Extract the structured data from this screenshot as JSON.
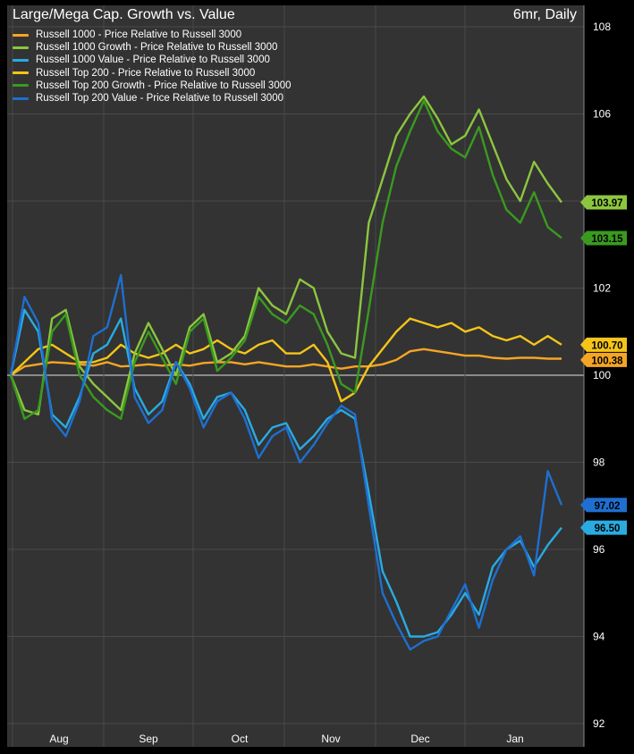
{
  "chart_data": {
    "type": "line",
    "title": "Large/Mega Cap. Growth vs. Value",
    "subtitle": "6mr, Daily",
    "ylim": [
      92,
      108
    ],
    "y_ticks": [
      92,
      94,
      96,
      98,
      100,
      102,
      104,
      106,
      108
    ],
    "x_ticks": [
      "Aug",
      "Sep",
      "Oct",
      "Nov",
      "Dec",
      "Jan"
    ],
    "grid": true,
    "legend_position": "top-left",
    "reference_line": 100,
    "series": [
      {
        "name": "Russell 1000 - Price Relative to Russell 3000",
        "color": "#f5a524",
        "last_label": "100.38",
        "values": [
          100.0,
          100.2,
          100.25,
          100.3,
          100.28,
          100.25,
          100.22,
          100.3,
          100.2,
          100.22,
          100.25,
          100.22,
          100.25,
          100.22,
          100.28,
          100.3,
          100.3,
          100.25,
          100.3,
          100.25,
          100.2,
          100.2,
          100.25,
          100.2,
          100.15,
          100.2,
          100.2,
          100.25,
          100.35,
          100.55,
          100.6,
          100.55,
          100.5,
          100.45,
          100.45,
          100.4,
          100.38,
          100.4,
          100.4,
          100.38,
          100.38
        ]
      },
      {
        "name": "Russell 1000 Growth - Price Relative to Russell 3000",
        "color": "#8cc63f",
        "last_label": "103.97",
        "values": [
          100.0,
          99.2,
          99.1,
          101.3,
          101.5,
          100.2,
          99.8,
          99.5,
          99.2,
          100.5,
          101.2,
          100.6,
          100.0,
          101.1,
          101.4,
          100.3,
          100.5,
          100.9,
          102.0,
          101.6,
          101.4,
          102.2,
          102.0,
          101.0,
          100.5,
          100.4,
          103.5,
          104.5,
          105.5,
          106.0,
          106.4,
          105.9,
          105.3,
          105.5,
          106.1,
          105.3,
          104.5,
          104.0,
          104.9,
          104.4,
          103.97
        ]
      },
      {
        "name": "Russell 1000 Value - Price Relative to Russell 3000",
        "color": "#29abe2",
        "last_label": "96.50",
        "values": [
          100.0,
          101.5,
          101.0,
          99.1,
          98.8,
          99.5,
          100.5,
          100.7,
          101.3,
          99.7,
          99.1,
          99.4,
          100.3,
          99.8,
          99.0,
          99.5,
          99.6,
          99.2,
          98.4,
          98.8,
          98.9,
          98.3,
          98.6,
          99.0,
          99.2,
          99.0,
          97.3,
          95.5,
          94.8,
          94.0,
          94.0,
          94.1,
          94.5,
          95.0,
          94.5,
          95.6,
          96.0,
          96.2,
          95.6,
          96.1,
          96.5
        ]
      },
      {
        "name": "Russell Top 200 - Price Relative to Russell 3000",
        "color": "#f5c518",
        "last_label": "100.70",
        "values": [
          100.0,
          100.3,
          100.6,
          100.7,
          100.5,
          100.3,
          100.3,
          100.4,
          100.7,
          100.5,
          100.4,
          100.5,
          100.7,
          100.5,
          100.6,
          100.8,
          100.6,
          100.5,
          100.7,
          100.8,
          100.5,
          100.5,
          100.7,
          100.3,
          99.4,
          99.6,
          100.2,
          100.6,
          101.0,
          101.3,
          101.2,
          101.1,
          101.2,
          101.0,
          101.1,
          100.9,
          100.8,
          100.9,
          100.7,
          100.9,
          100.7
        ]
      },
      {
        "name": "Russell Top 200 Growth - Price Relative to Russell 3000",
        "color": "#3a9a1f",
        "last_label": "103.15",
        "values": [
          100.0,
          99.0,
          99.2,
          101.0,
          101.4,
          100.0,
          99.5,
          99.2,
          99.0,
          100.3,
          101.0,
          100.4,
          99.8,
          101.0,
          101.3,
          100.1,
          100.4,
          100.8,
          101.8,
          101.4,
          101.2,
          101.6,
          101.4,
          100.7,
          99.8,
          99.6,
          101.5,
          103.5,
          104.8,
          105.6,
          106.3,
          105.6,
          105.2,
          105.0,
          105.7,
          104.6,
          103.8,
          103.5,
          104.2,
          103.4,
          103.15
        ]
      },
      {
        "name": "Russell Top 200 Value - Price Relative to Russell 3000",
        "color": "#1e6fd0",
        "last_label": "97.02",
        "values": [
          100.0,
          101.8,
          101.2,
          99.0,
          98.6,
          99.4,
          100.9,
          101.1,
          102.3,
          99.5,
          98.9,
          99.2,
          100.3,
          99.7,
          98.8,
          99.4,
          99.6,
          99.0,
          98.1,
          98.6,
          98.8,
          98.0,
          98.4,
          98.9,
          99.3,
          99.1,
          97.0,
          95.0,
          94.3,
          93.7,
          93.9,
          94.0,
          94.6,
          95.2,
          94.2,
          95.3,
          96.0,
          96.3,
          95.4,
          97.8,
          97.02
        ]
      }
    ]
  }
}
